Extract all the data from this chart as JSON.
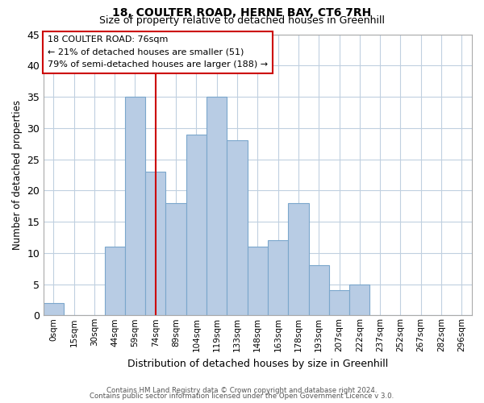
{
  "title": "18, COULTER ROAD, HERNE BAY, CT6 7RH",
  "subtitle": "Size of property relative to detached houses in Greenhill",
  "xlabel": "Distribution of detached houses by size in Greenhill",
  "ylabel": "Number of detached properties",
  "bar_labels": [
    "0sqm",
    "15sqm",
    "30sqm",
    "44sqm",
    "59sqm",
    "74sqm",
    "89sqm",
    "104sqm",
    "119sqm",
    "133sqm",
    "148sqm",
    "163sqm",
    "178sqm",
    "193sqm",
    "207sqm",
    "222sqm",
    "237sqm",
    "252sqm",
    "267sqm",
    "282sqm",
    "296sqm"
  ],
  "bar_values": [
    2,
    0,
    0,
    11,
    35,
    23,
    18,
    29,
    35,
    28,
    11,
    12,
    18,
    8,
    4,
    5,
    0,
    0,
    0,
    0,
    0
  ],
  "bar_color": "#b8cce4",
  "bar_edge_color": "#7ba7cc",
  "vline_x": 5,
  "vline_color": "#cc0000",
  "annotation_title": "18 COULTER ROAD: 76sqm",
  "annotation_line1": "← 21% of detached houses are smaller (51)",
  "annotation_line2": "79% of semi-detached houses are larger (188) →",
  "annotation_box_color": "#ffffff",
  "annotation_box_edge": "#cc0000",
  "ylim": [
    0,
    45
  ],
  "yticks": [
    0,
    5,
    10,
    15,
    20,
    25,
    30,
    35,
    40,
    45
  ],
  "footer1": "Contains HM Land Registry data © Crown copyright and database right 2024.",
  "footer2": "Contains public sector information licensed under the Open Government Licence v 3.0.",
  "background_color": "#ffffff",
  "grid_color": "#c0d0e0"
}
